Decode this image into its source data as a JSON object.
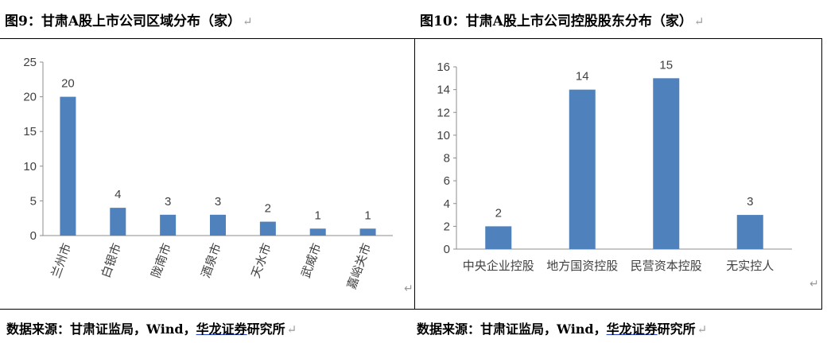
{
  "figures": [
    {
      "title": "图9：甘肃A股上市公司区域分布（家）",
      "source_prefix": "数据来源：甘肃证监局，Wind，",
      "source_underlined": "华龙证券",
      "source_suffix": "研究所",
      "chart_data": {
        "type": "bar",
        "categories": [
          "兰州市",
          "白银市",
          "陇南市",
          "酒泉市",
          "天水市",
          "武威市",
          "嘉峪关市"
        ],
        "values": [
          20,
          4,
          3,
          3,
          2,
          1,
          1
        ],
        "ylim": [
          0,
          25
        ],
        "yticks": [
          0,
          5,
          10,
          15,
          20,
          25
        ],
        "xlabel": "",
        "ylabel": "",
        "bar_color": "#4f81bd",
        "grid": false,
        "tick_rotation": "vertical"
      }
    },
    {
      "title": "图10：甘肃A股上市公司控股股东分布（家）",
      "source_prefix": "数据来源：甘肃证监局，Wind，",
      "source_underlined": "华龙证券",
      "source_suffix": "研究所",
      "chart_data": {
        "type": "bar",
        "categories": [
          "中央企业控股",
          "地方国资控股",
          "民营资本控股",
          "无实控人"
        ],
        "values": [
          2,
          14,
          15,
          3
        ],
        "ylim": [
          0,
          16
        ],
        "yticks": [
          0,
          2,
          4,
          6,
          8,
          10,
          12,
          14,
          16
        ],
        "xlabel": "",
        "ylabel": "",
        "bar_color": "#4f81bd",
        "grid": false,
        "tick_rotation": "horizontal"
      }
    }
  ],
  "return_mark": "↵"
}
